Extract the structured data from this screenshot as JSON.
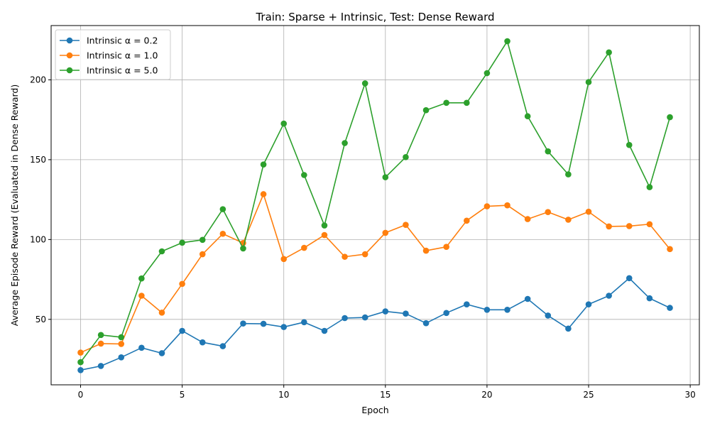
{
  "chart_data": {
    "type": "line",
    "title": "Train: Sparse + Intrinsic, Test: Dense Reward",
    "xlabel": "Epoch",
    "ylabel": "Average Episode Reward (Evaluated in Dense Reward)",
    "xlim": [
      -1.45,
      30.45
    ],
    "ylim": [
      9.0,
      234.0
    ],
    "xticks": [
      0,
      5,
      10,
      15,
      20,
      25,
      30
    ],
    "yticks": [
      50,
      100,
      150,
      200
    ],
    "grid": true,
    "legend_position": "top-left",
    "x": [
      0,
      1,
      2,
      3,
      4,
      5,
      6,
      7,
      8,
      9,
      10,
      11,
      12,
      13,
      14,
      15,
      16,
      17,
      18,
      19,
      20,
      21,
      22,
      23,
      24,
      25,
      26,
      27,
      28,
      29
    ],
    "series": [
      {
        "name": "Intrinsic α = 0.2",
        "color": "#1f77b4",
        "values": [
          18.2,
          20.8,
          26.2,
          32.2,
          28.8,
          42.8,
          35.6,
          33.2,
          47.4,
          47.2,
          45.2,
          48.2,
          42.8,
          50.8,
          51.2,
          55.0,
          53.6,
          47.6,
          54.0,
          59.4,
          56.0,
          56.0,
          62.8,
          52.4,
          44.2,
          59.4,
          64.8,
          75.8,
          63.2,
          57.2
        ]
      },
      {
        "name": "Intrinsic α = 1.0",
        "color": "#ff7f0e",
        "values": [
          29.2,
          34.8,
          34.6,
          64.8,
          54.2,
          72.2,
          90.8,
          103.6,
          97.8,
          128.4,
          87.8,
          94.8,
          102.8,
          89.2,
          90.8,
          104.2,
          109.2,
          93.0,
          95.4,
          111.8,
          120.8,
          121.4,
          112.8,
          117.2,
          112.4,
          117.4,
          108.2,
          108.4,
          109.6,
          94.0
        ]
      },
      {
        "name": "Intrinsic α = 5.0",
        "color": "#2ca02c",
        "values": [
          23.2,
          40.2,
          38.8,
          75.6,
          92.6,
          98.0,
          99.8,
          119.0,
          94.4,
          147.0,
          172.6,
          140.4,
          108.8,
          160.4,
          197.8,
          139.0,
          151.6,
          181.0,
          185.6,
          185.6,
          204.2,
          224.2,
          177.2,
          155.2,
          140.8,
          198.6,
          217.2,
          159.2,
          132.8,
          176.6
        ]
      }
    ]
  }
}
